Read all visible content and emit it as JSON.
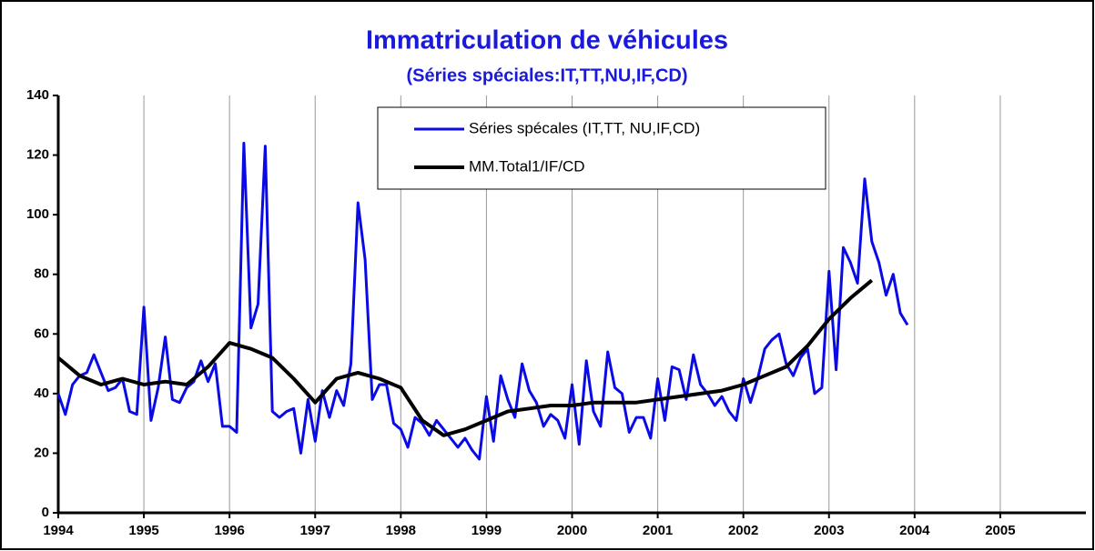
{
  "chart_data": {
    "type": "line",
    "title": "Immatriculation de véhicules",
    "subtitle": "(Séries spéciales:IT,TT,NU,IF,CD)",
    "xlim": [
      1994,
      2006
    ],
    "xticks": [
      1994,
      1995,
      1996,
      1997,
      1998,
      1999,
      2000,
      2001,
      2002,
      2003,
      2004,
      2005
    ],
    "ylim": [
      0,
      140
    ],
    "yticks": [
      0,
      20,
      40,
      60,
      80,
      100,
      120,
      140
    ],
    "grid": "x",
    "legend": "top",
    "series": [
      {
        "name": "Séries spécales (IT,TT, NU,IF,CD)",
        "color": "#0a0ae6",
        "x": [
          1994,
          1994.083,
          1994.167,
          1994.25,
          1994.333,
          1994.417,
          1994.5,
          1994.583,
          1994.667,
          1994.75,
          1994.833,
          1994.917,
          1995,
          1995.083,
          1995.167,
          1995.25,
          1995.333,
          1995.417,
          1995.5,
          1995.583,
          1995.667,
          1995.75,
          1995.833,
          1995.917,
          1996,
          1996.083,
          1996.167,
          1996.25,
          1996.333,
          1996.417,
          1996.5,
          1996.583,
          1996.667,
          1996.75,
          1996.833,
          1996.917,
          1997,
          1997.083,
          1997.167,
          1997.25,
          1997.333,
          1997.417,
          1997.5,
          1997.583,
          1997.667,
          1997.75,
          1997.833,
          1997.917,
          1998,
          1998.083,
          1998.167,
          1998.25,
          1998.333,
          1998.417,
          1998.5,
          1998.583,
          1998.667,
          1998.75,
          1998.833,
          1998.917,
          1999,
          1999.083,
          1999.167,
          1999.25,
          1999.333,
          1999.417,
          1999.5,
          1999.583,
          1999.667,
          1999.75,
          1999.833,
          1999.917,
          2000,
          2000.083,
          2000.167,
          2000.25,
          2000.333,
          2000.417,
          2000.5,
          2000.583,
          2000.667,
          2000.75,
          2000.833,
          2000.917,
          2001,
          2001.083,
          2001.167,
          2001.25,
          2001.333,
          2001.417,
          2001.5,
          2001.583,
          2001.667,
          2001.75,
          2001.833,
          2001.917,
          2002,
          2002.083,
          2002.167,
          2002.25,
          2002.333,
          2002.417,
          2002.5,
          2002.583,
          2002.667,
          2002.75,
          2002.833,
          2002.917,
          2003,
          2003.083,
          2003.167,
          2003.25,
          2003.333,
          2003.417,
          2003.5,
          2003.583,
          2003.667,
          2003.75,
          2003.833,
          2003.917
        ],
        "values": [
          40,
          33,
          43,
          46,
          47,
          53,
          47,
          41,
          42,
          45,
          34,
          33,
          69,
          31,
          42,
          59,
          38,
          37,
          42,
          44,
          51,
          44,
          50,
          29,
          29,
          27,
          124,
          62,
          70,
          123,
          34,
          32,
          34,
          35,
          20,
          38,
          24,
          41,
          32,
          41,
          36,
          50,
          104,
          85,
          38,
          43,
          43,
          30,
          28,
          22,
          32,
          30,
          26,
          31,
          28,
          25,
          22,
          25,
          21,
          18,
          39,
          24,
          46,
          38,
          32,
          50,
          41,
          37,
          29,
          33,
          31,
          25,
          43,
          23,
          51,
          34,
          29,
          54,
          42,
          40,
          27,
          32,
          32,
          25,
          45,
          31,
          49,
          48,
          38,
          53,
          43,
          40,
          36,
          39,
          34,
          31,
          45,
          37,
          45,
          55,
          58,
          60,
          50,
          46,
          52,
          55,
          40,
          42,
          81,
          48,
          89,
          84,
          77,
          112,
          91,
          84,
          73,
          80,
          67,
          63
        ]
      },
      {
        "name": "MM.Total1/IF/CD",
        "color": "#000000",
        "x": [
          1994,
          1994.25,
          1994.5,
          1994.75,
          1995,
          1995.25,
          1995.5,
          1995.75,
          1996,
          1996.25,
          1996.5,
          1996.75,
          1997,
          1997.25,
          1997.5,
          1997.75,
          1998,
          1998.25,
          1998.5,
          1998.75,
          1999,
          1999.25,
          1999.5,
          1999.75,
          2000,
          2000.25,
          2000.5,
          2000.75,
          2001,
          2001.25,
          2001.5,
          2001.75,
          2002,
          2002.25,
          2002.5,
          2002.75,
          2003,
          2003.25,
          2003.5
        ],
        "values": [
          52,
          46,
          43,
          45,
          43,
          44,
          43,
          49,
          57,
          55,
          52,
          45,
          37,
          45,
          47,
          45,
          42,
          31,
          26,
          28,
          31,
          34,
          35,
          36,
          36,
          37,
          37,
          37,
          38,
          39,
          40,
          41,
          43,
          46,
          49,
          56,
          65,
          72,
          78
        ]
      }
    ]
  }
}
